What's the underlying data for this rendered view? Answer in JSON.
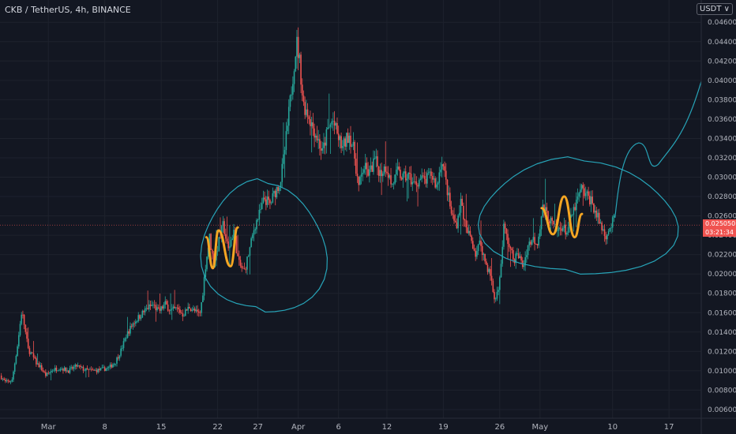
{
  "header": {
    "title": "CKB / TetherUS, 4h, BINANCE",
    "currency_button": "USDT ∨"
  },
  "price_tag": {
    "price": "0.025050",
    "countdown": "03:21:34"
  },
  "colors": {
    "background": "#131722",
    "grid": "#1e222d",
    "up": "#26a69a",
    "down": "#ef5350",
    "annotation": "#27a4b8",
    "highlight": "#f5a623",
    "last_price_line": "#ef5350"
  },
  "chart_data": {
    "type": "candlestick",
    "title": "CKB / TetherUS, 4h, BINANCE",
    "ylim": [
      0.0051,
      0.0483
    ],
    "y_ticks": [
      0.006,
      0.008,
      0.01,
      0.012,
      0.014,
      0.016,
      0.018,
      0.02,
      0.022,
      0.024,
      0.026,
      0.028,
      0.03,
      0.032,
      0.034,
      0.036,
      0.038,
      0.04,
      0.042,
      0.044,
      0.046
    ],
    "y_tick_labels": [
      "0.006000",
      "0.008000",
      "0.010000",
      "0.012000",
      "0.014000",
      "0.016000",
      "0.018000",
      "0.020000",
      "0.022000",
      "0.024000",
      "0.026000",
      "0.028000",
      "0.030000",
      "0.032000",
      "0.034000",
      "0.036000",
      "0.038000",
      "0.040000",
      "0.042000",
      "0.044000",
      "0.046000"
    ],
    "x_tick_labels": [
      "Mar",
      "8",
      "15",
      "22",
      "27",
      "Apr",
      "6",
      "12",
      "19",
      "26",
      "May",
      "10",
      "17"
    ],
    "x_tick_days": [
      0,
      7,
      14,
      21,
      26,
      31,
      36,
      42,
      49,
      56,
      61,
      70,
      77
    ],
    "xlim_days": [
      -6,
      81
    ],
    "last_price": 0.02505,
    "grid": true,
    "price_path": [
      [
        -6.0,
        0.0095
      ],
      [
        -5.3,
        0.0088
      ],
      [
        -4.5,
        0.009
      ],
      [
        -3.8,
        0.0128
      ],
      [
        -3.3,
        0.0162
      ],
      [
        -3.0,
        0.0148
      ],
      [
        -2.5,
        0.0122
      ],
      [
        -2.0,
        0.0116
      ],
      [
        -1.5,
        0.0108
      ],
      [
        -1.0,
        0.0104
      ],
      [
        -0.3,
        0.0095
      ],
      [
        0.5,
        0.0101
      ],
      [
        1.5,
        0.0103
      ],
      [
        2.5,
        0.01
      ],
      [
        3.5,
        0.0105
      ],
      [
        4.5,
        0.0101
      ],
      [
        5.5,
        0.01
      ],
      [
        6.5,
        0.0101
      ],
      [
        7.5,
        0.0103
      ],
      [
        8.3,
        0.0109
      ],
      [
        9.0,
        0.0121
      ],
      [
        9.7,
        0.0137
      ],
      [
        10.5,
        0.0149
      ],
      [
        11.5,
        0.0158
      ],
      [
        12.3,
        0.0165
      ],
      [
        13.0,
        0.0168
      ],
      [
        13.7,
        0.0161
      ],
      [
        14.5,
        0.0169
      ],
      [
        15.2,
        0.0162
      ],
      [
        16.0,
        0.0164
      ],
      [
        16.7,
        0.0158
      ],
      [
        17.5,
        0.0166
      ],
      [
        18.2,
        0.0161
      ],
      [
        18.8,
        0.0158
      ],
      [
        19.1,
        0.0176
      ],
      [
        19.5,
        0.0209
      ],
      [
        20.0,
        0.0238
      ],
      [
        20.5,
        0.021
      ],
      [
        21.0,
        0.0228
      ],
      [
        21.7,
        0.0251
      ],
      [
        22.3,
        0.0224
      ],
      [
        23.0,
        0.0245
      ],
      [
        23.6,
        0.0211
      ],
      [
        24.3,
        0.0202
      ],
      [
        25.0,
        0.0226
      ],
      [
        25.6,
        0.025
      ],
      [
        26.2,
        0.0262
      ],
      [
        26.8,
        0.0278
      ],
      [
        27.5,
        0.0272
      ],
      [
        28.2,
        0.0286
      ],
      [
        28.8,
        0.0296
      ],
      [
        29.3,
        0.0326
      ],
      [
        29.7,
        0.0355
      ],
      [
        30.1,
        0.0386
      ],
      [
        30.5,
        0.0418
      ],
      [
        30.8,
        0.044
      ],
      [
        31.2,
        0.0418
      ],
      [
        31.6,
        0.0376
      ],
      [
        32.2,
        0.0366
      ],
      [
        32.8,
        0.0352
      ],
      [
        33.4,
        0.034
      ],
      [
        34.0,
        0.0325
      ],
      [
        34.6,
        0.0347
      ],
      [
        35.3,
        0.0359
      ],
      [
        35.9,
        0.0342
      ],
      [
        36.5,
        0.033
      ],
      [
        37.3,
        0.0345
      ],
      [
        37.9,
        0.0327
      ],
      [
        38.5,
        0.0289
      ],
      [
        39.1,
        0.0311
      ],
      [
        39.8,
        0.0303
      ],
      [
        40.5,
        0.0318
      ],
      [
        41.2,
        0.0304
      ],
      [
        41.9,
        0.0312
      ],
      [
        42.6,
        0.0291
      ],
      [
        43.3,
        0.0305
      ],
      [
        44.0,
        0.0299
      ],
      [
        44.7,
        0.0301
      ],
      [
        45.4,
        0.0292
      ],
      [
        46.1,
        0.0298
      ],
      [
        46.8,
        0.0296
      ],
      [
        47.5,
        0.0303
      ],
      [
        48.2,
        0.029
      ],
      [
        48.8,
        0.032
      ],
      [
        49.4,
        0.0291
      ],
      [
        50.0,
        0.0262
      ],
      [
        50.6,
        0.025
      ],
      [
        51.2,
        0.0276
      ],
      [
        51.8,
        0.0245
      ],
      [
        52.4,
        0.0238
      ],
      [
        53.0,
        0.0221
      ],
      [
        53.6,
        0.0233
      ],
      [
        54.2,
        0.0212
      ],
      [
        54.8,
        0.02
      ],
      [
        55.4,
        0.0171
      ],
      [
        56.0,
        0.0194
      ],
      [
        56.5,
        0.0249
      ],
      [
        57.1,
        0.0231
      ],
      [
        57.7,
        0.0215
      ],
      [
        58.3,
        0.022
      ],
      [
        58.9,
        0.0207
      ],
      [
        59.5,
        0.023
      ],
      [
        60.1,
        0.0236
      ],
      [
        60.7,
        0.0233
      ],
      [
        61.3,
        0.0268
      ],
      [
        61.9,
        0.0261
      ],
      [
        62.5,
        0.0251
      ],
      [
        63.1,
        0.0243
      ],
      [
        63.7,
        0.025
      ],
      [
        64.3,
        0.0243
      ],
      [
        64.9,
        0.0259
      ],
      [
        65.5,
        0.0273
      ],
      [
        66.1,
        0.0288
      ],
      [
        66.7,
        0.0281
      ],
      [
        67.3,
        0.0277
      ],
      [
        67.9,
        0.0263
      ],
      [
        68.5,
        0.0251
      ],
      [
        69.1,
        0.024
      ],
      [
        69.7,
        0.0248
      ],
      [
        70.3,
        0.0258
      ]
    ],
    "annotations": [
      {
        "type": "ellipse-freehand",
        "label": "",
        "days": [
          19.0,
          34.5
        ],
        "price": [
          0.0162,
          0.0295
        ]
      },
      {
        "type": "ellipse-freehand",
        "label": "",
        "days": [
          53.5,
          78.0
        ],
        "price": [
          0.0201,
          0.0318
        ]
      },
      {
        "type": "projection-freehand",
        "label": "",
        "from": [
          70.3,
          0.0258
        ],
        "to": [
          82.0,
          0.043
        ]
      },
      {
        "type": "w-pattern",
        "label": "",
        "points": [
          [
            19.6,
            0.0238
          ],
          [
            20.4,
            0.0206
          ],
          [
            21.1,
            0.0245
          ],
          [
            22.6,
            0.0208
          ],
          [
            23.5,
            0.0248
          ]
        ]
      },
      {
        "type": "w-pattern",
        "label": "",
        "points": [
          [
            61.2,
            0.0268
          ],
          [
            62.6,
            0.0241
          ],
          [
            64.0,
            0.028
          ],
          [
            65.3,
            0.0238
          ],
          [
            66.2,
            0.0262
          ]
        ]
      }
    ]
  }
}
